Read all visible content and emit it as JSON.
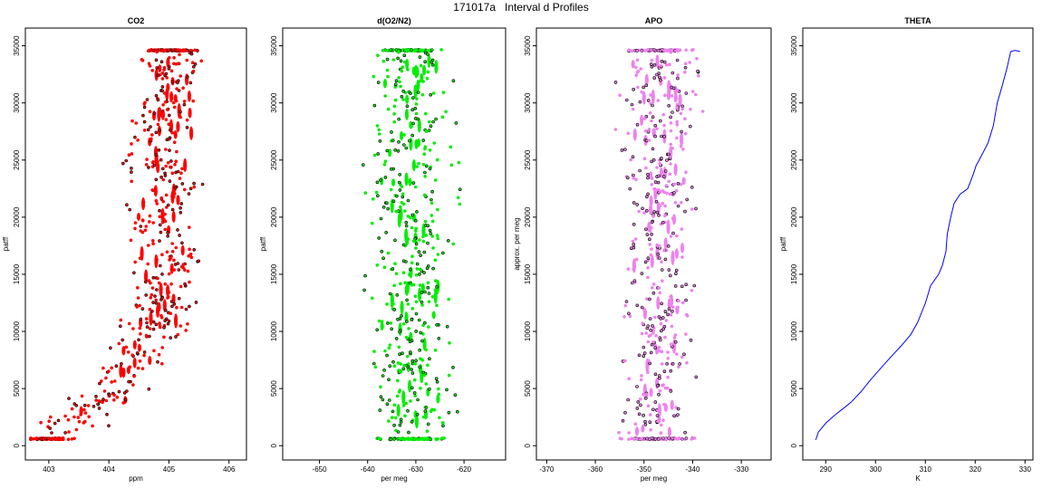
{
  "title": "171017a   Interval d Profiles",
  "colors": {
    "co2": "#ff0000",
    "o2n2": "#00ee00",
    "apo": "#ee82ee",
    "theta": "#0000ff",
    "edge": "#000000"
  },
  "chart_data": [
    {
      "type": "scatter",
      "title": "CO2",
      "xlabel": "ppm",
      "ylabel": "patff",
      "xlim": [
        402.7,
        406.2
      ],
      "ylim": [
        -300,
        35600
      ],
      "xticks": [
        "403",
        "404",
        "405",
        "406"
      ],
      "yticks": [
        "0",
        "5000",
        "10000",
        "15000",
        "20000",
        "25000",
        "30000",
        "35000"
      ],
      "series": [
        {
          "x_center": [
            403.0,
            403.2,
            403.5,
            403.8,
            404.0,
            404.2,
            404.4,
            404.6,
            404.8,
            404.9,
            405.0,
            405.0,
            405.0,
            404.9,
            404.8,
            404.9,
            405.0,
            404.9,
            404.8,
            404.9,
            405.0,
            405.0
          ],
          "y_center": [
            600,
            1500,
            2500,
            3500,
            4500,
            6000,
            7500,
            9000,
            10500,
            12000,
            13500,
            15000,
            16500,
            18000,
            19500,
            21000,
            22500,
            24000,
            25500,
            27000,
            30000,
            34500
          ],
          "spread": 0.6
        }
      ]
    },
    {
      "type": "scatter",
      "title": "d(O2/N2)",
      "xlabel": "per meg",
      "ylabel": "patff",
      "xlim": [
        -656.5,
        -612.5
      ],
      "ylim": [
        -300,
        35600
      ],
      "xticks": [
        "-650",
        "-640",
        "-630",
        "-620"
      ],
      "yticks": [
        "0",
        "5000",
        "10000",
        "15000",
        "20000",
        "25000",
        "30000",
        "35000"
      ],
      "series": [
        {
          "x_mean": -631,
          "spread": 9
        }
      ]
    },
    {
      "type": "scatter",
      "title": "APO",
      "xlabel": "per meg",
      "ylabel": "approx. per meg",
      "xlim": [
        -371,
        -325
      ],
      "ylim": [
        -300,
        35600
      ],
      "xticks": [
        "-370",
        "-360",
        "-350",
        "-340",
        "-330"
      ],
      "yticks": [
        "0",
        "5000",
        "10000",
        "15000",
        "20000",
        "25000",
        "30000",
        "35000"
      ],
      "series": [
        {
          "x_mean": -347,
          "spread": 8
        }
      ]
    },
    {
      "type": "line",
      "title": "THETA",
      "xlabel": "K",
      "ylabel": "patff",
      "xlim": [
        286.5,
        330.5
      ],
      "ylim": [
        -300,
        35600
      ],
      "xticks": [
        "290",
        "300",
        "310",
        "320",
        "330"
      ],
      "yticks": [
        "0",
        "5000",
        "10000",
        "15000",
        "20000",
        "25000",
        "30000",
        "35000"
      ],
      "series": [
        {
          "name": "",
          "x": [
            288.0,
            288.5,
            290.0,
            292.0,
            293.5,
            295.0,
            297.0,
            299.0,
            301.0,
            303.0,
            305.0,
            307.0,
            308.5,
            310.0,
            311.0,
            312.5,
            313.5,
            314.0,
            314.5,
            315.0,
            315.8,
            317.0,
            318.5,
            319.5,
            320.0,
            321.5,
            322.5,
            323.5,
            324.5,
            325.5,
            326.5,
            327.0,
            328.0,
            329.0
          ],
          "y": [
            500,
            1200,
            2000,
            2700,
            3200,
            3800,
            4700,
            5700,
            6700,
            7700,
            8700,
            9700,
            10800,
            12500,
            14000,
            15000,
            15800,
            17000,
            18500,
            20000,
            21200,
            22000,
            22500,
            23800,
            24500,
            25500,
            26500,
            28000,
            30000,
            31500,
            33000,
            34500,
            34600,
            34500
          ]
        }
      ]
    }
  ]
}
